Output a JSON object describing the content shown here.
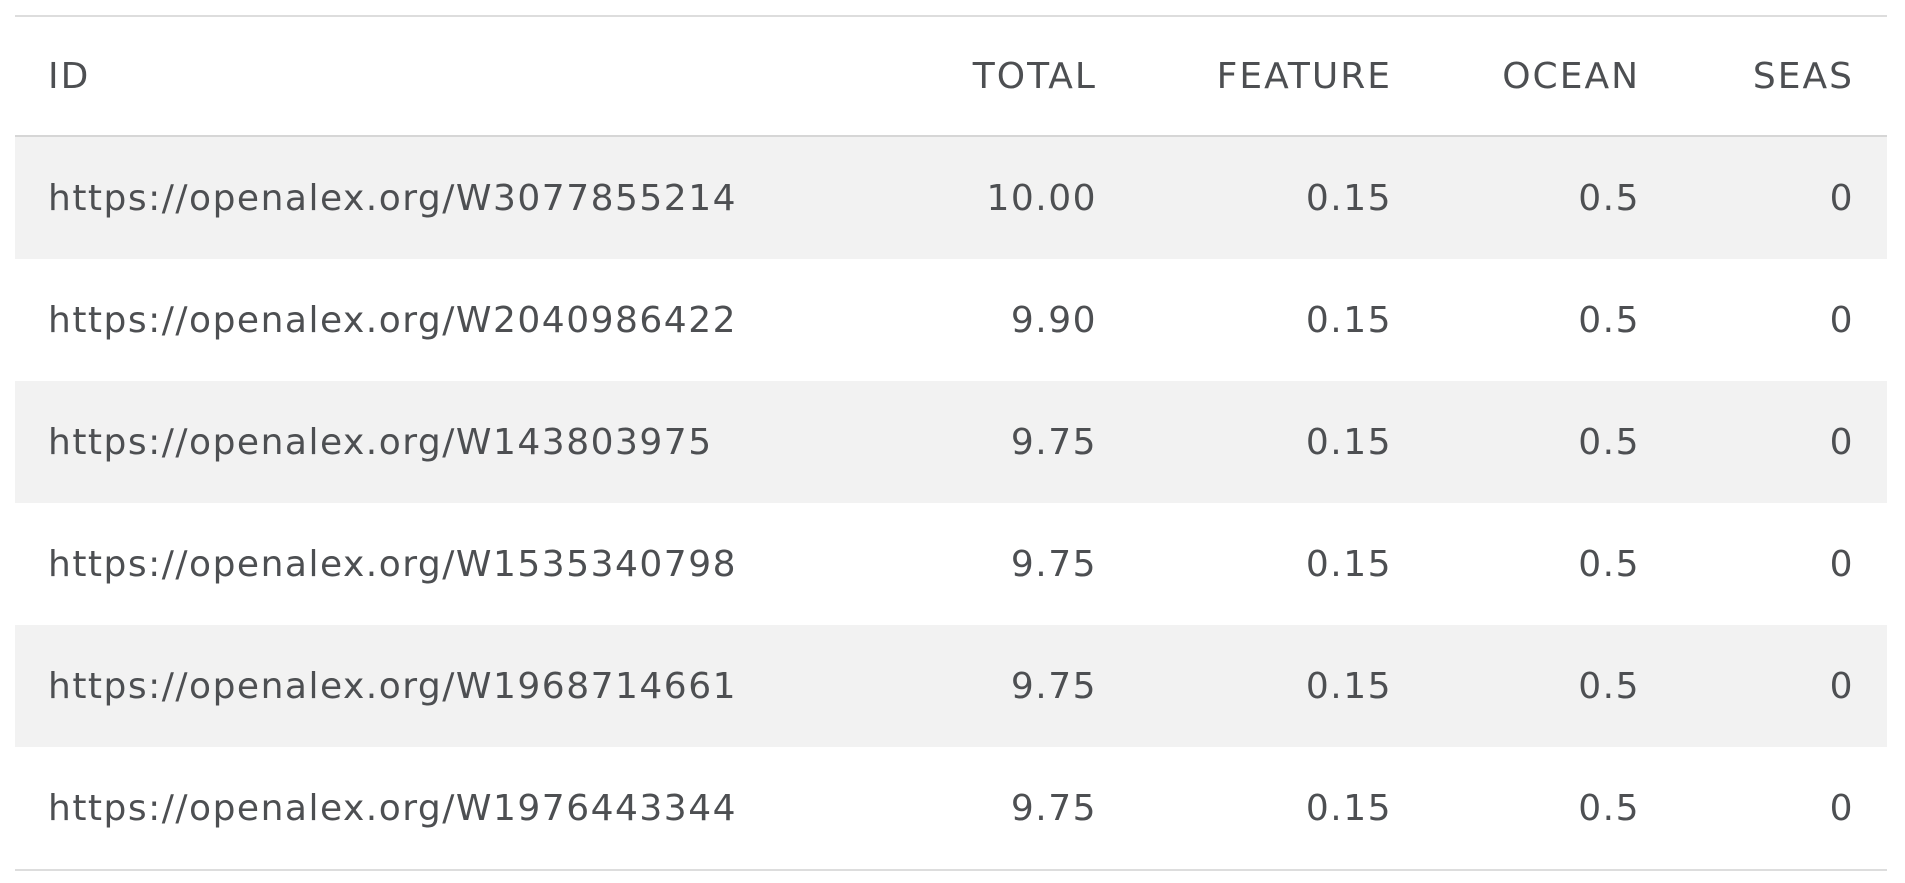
{
  "table": {
    "headers": {
      "id": "ID",
      "total": "TOTAL",
      "feature": "FEATURE",
      "ocean": "OCEAN",
      "seas": "SEAS"
    },
    "rows": [
      {
        "id": "https://openalex.org/W3077855214",
        "total": "10.00",
        "feature": "0.15",
        "ocean": "0.5",
        "seas": "0"
      },
      {
        "id": "https://openalex.org/W2040986422",
        "total": "9.90",
        "feature": "0.15",
        "ocean": "0.5",
        "seas": "0"
      },
      {
        "id": "https://openalex.org/W143803975",
        "total": "9.75",
        "feature": "0.15",
        "ocean": "0.5",
        "seas": "0"
      },
      {
        "id": "https://openalex.org/W1535340798",
        "total": "9.75",
        "feature": "0.15",
        "ocean": "0.5",
        "seas": "0"
      },
      {
        "id": "https://openalex.org/W1968714661",
        "total": "9.75",
        "feature": "0.15",
        "ocean": "0.5",
        "seas": "0"
      },
      {
        "id": "https://openalex.org/W1976443344",
        "total": "9.75",
        "feature": "0.15",
        "ocean": "0.5",
        "seas": "0"
      }
    ],
    "colors": {
      "text": "#4d4f52",
      "stripe": "#f2f2f2",
      "border": "#dddddd"
    }
  }
}
